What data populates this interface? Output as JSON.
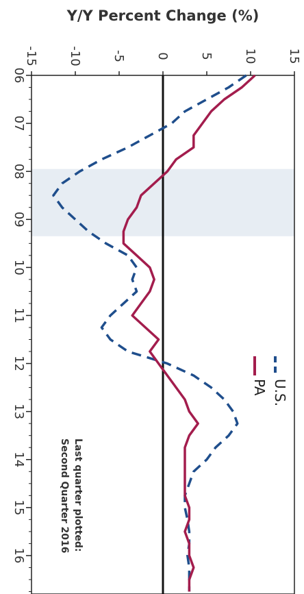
{
  "chart_data": {
    "type": "line",
    "orientation": "rotated-90-clockwise",
    "title": "Y/Y Percent Change (%)",
    "x_ticks": [
      "06",
      "07",
      "08",
      "09",
      "10",
      "11",
      "12",
      "13",
      "14",
      "15",
      "16"
    ],
    "y_ticks": [
      -15,
      -10,
      -5,
      0,
      5,
      10,
      15
    ],
    "ylim": [
      -15,
      15
    ],
    "xlim": [
      0,
      10.8
    ],
    "recession_shading": [
      [
        1.95,
        3.35
      ]
    ],
    "zero_line": true,
    "legend_position": "top-right",
    "series": [
      {
        "name": "U.S.",
        "style": "dashed",
        "color": "#1f4e8c",
        "x": [
          0,
          0.25,
          0.5,
          0.75,
          1.0,
          1.25,
          1.5,
          1.75,
          2.0,
          2.25,
          2.5,
          2.75,
          3.0,
          3.25,
          3.5,
          3.75,
          4.0,
          4.25,
          4.5,
          4.75,
          5.0,
          5.25,
          5.5,
          5.75,
          6.0,
          6.25,
          6.5,
          6.75,
          7.0,
          7.25,
          7.5,
          7.75,
          8.0,
          8.25,
          8.5,
          8.75,
          9.0,
          9.25,
          9.5,
          9.75,
          10.0,
          10.25,
          10.5,
          10.75
        ],
        "values": [
          9.5,
          7.5,
          5.0,
          2.5,
          1.0,
          -1.5,
          -4.0,
          -7.0,
          -9.5,
          -11.5,
          -12.5,
          -11.5,
          -10.0,
          -8.5,
          -6.5,
          -4.0,
          -3.0,
          -3.5,
          -3.0,
          -4.5,
          -6.0,
          -7.0,
          -6.0,
          -4.0,
          0.5,
          3.5,
          5.5,
          7.0,
          8.0,
          8.5,
          7.5,
          6.0,
          5.0,
          3.5,
          3.0,
          2.5,
          2.5,
          2.8,
          3.0,
          3.0,
          2.8,
          3.0,
          3.0,
          3.0
        ]
      },
      {
        "name": "PA",
        "style": "solid",
        "color": "#a31d4d",
        "x": [
          0,
          0.25,
          0.5,
          0.75,
          1.0,
          1.25,
          1.5,
          1.75,
          2.0,
          2.25,
          2.5,
          2.75,
          3.0,
          3.25,
          3.5,
          3.75,
          4.0,
          4.25,
          4.5,
          4.75,
          5.0,
          5.25,
          5.5,
          5.75,
          6.0,
          6.25,
          6.5,
          6.75,
          7.0,
          7.25,
          7.5,
          7.75,
          8.0,
          8.25,
          8.5,
          8.75,
          9.0,
          9.25,
          9.5,
          9.75,
          10.0,
          10.25,
          10.5,
          10.75
        ],
        "values": [
          10.5,
          9.0,
          7.0,
          5.5,
          4.5,
          3.5,
          3.5,
          1.5,
          0.5,
          -1.0,
          -2.5,
          -3.0,
          -4.0,
          -4.5,
          -4.5,
          -3.0,
          -1.5,
          -1.0,
          -1.5,
          -2.5,
          -3.5,
          -2.0,
          -0.5,
          -1.5,
          -0.5,
          0.5,
          1.5,
          2.5,
          3.0,
          4.0,
          3.0,
          2.5,
          2.5,
          2.5,
          2.5,
          2.5,
          3.0,
          3.0,
          2.5,
          3.0,
          3.0,
          3.5,
          3.0,
          3.0
        ]
      }
    ],
    "legend": [
      {
        "label": "U.S.",
        "style": "dashed",
        "color": "#1f4e8c"
      },
      {
        "label": "PA",
        "style": "solid",
        "color": "#a31d4d"
      }
    ],
    "annotation": [
      "Last quarter plotted:",
      "Second Quarter 2016"
    ]
  }
}
